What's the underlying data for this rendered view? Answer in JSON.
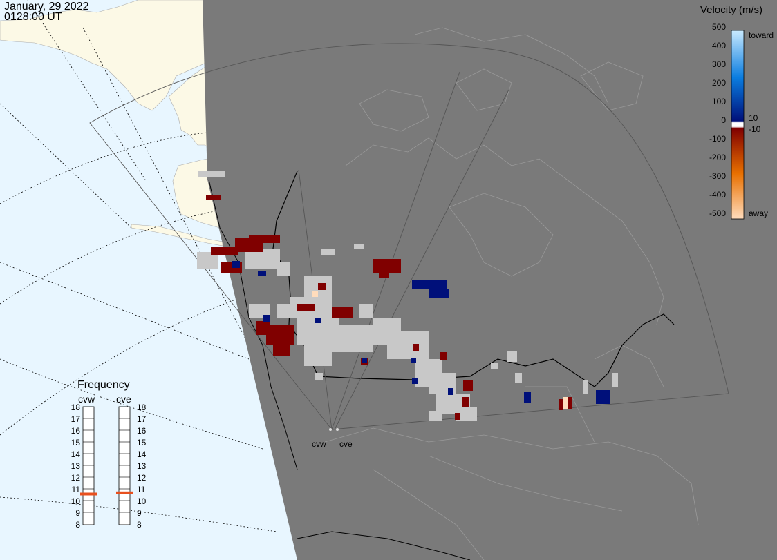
{
  "header": {
    "date": "January, 29 2022",
    "time": "0128:00 UT"
  },
  "legend": {
    "title": "Velocity (m/s)",
    "ticks": [
      "500",
      "400",
      "300",
      "200",
      "100",
      "0",
      "-100",
      "-200",
      "-300",
      "-400",
      "-500"
    ],
    "toward_label": "toward",
    "away_label": "away",
    "pos_threshold": "10",
    "neg_threshold": "-10",
    "colors": {
      "toward_max": "#c9eaff",
      "toward_mid": "#0a7de0",
      "toward_min": "#00107a",
      "away_min": "#800000",
      "away_mid": "#e87000",
      "away_max": "#ffdcbc",
      "ground_scatter": "#c8c8c8"
    }
  },
  "frequency_panel": {
    "title": "Frequency",
    "radars": [
      {
        "name": "cvw",
        "frequency_mhz": 10.6
      },
      {
        "name": "cve",
        "frequency_mhz": 10.7
      }
    ],
    "scale": [
      "18",
      "17",
      "16",
      "15",
      "14",
      "13",
      "12",
      "11",
      "10",
      "9",
      "8"
    ],
    "marker_color": "#e8501e"
  },
  "sites": {
    "west": "cvw",
    "east": "cve"
  },
  "map_colors": {
    "ocean": "#e8f6ff",
    "land": "#fcf9e6",
    "night": "#7a7a7a",
    "night_border": "#a0a0a0",
    "coast": "#000000"
  }
}
